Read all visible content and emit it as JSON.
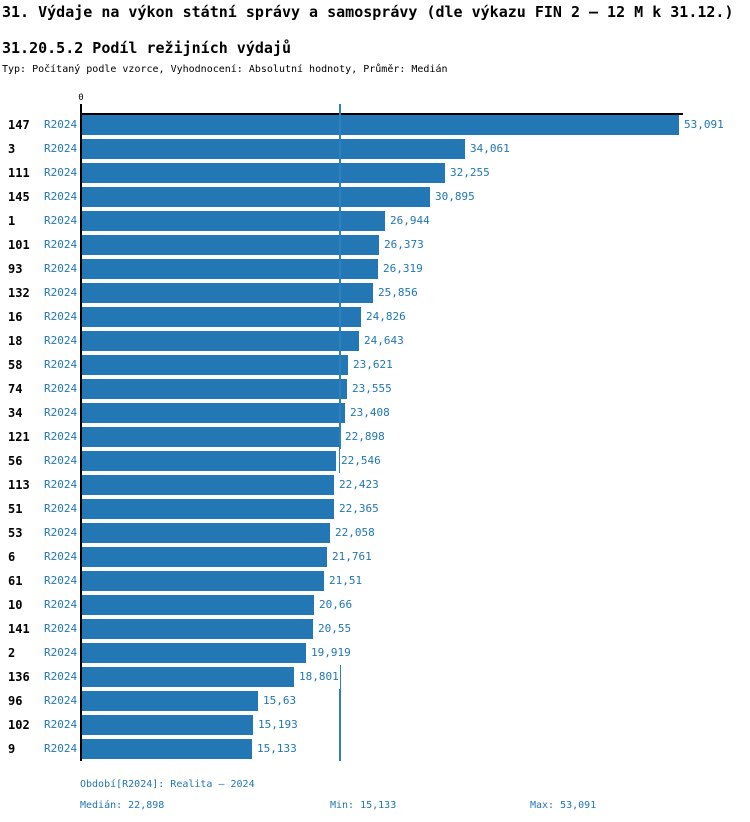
{
  "title": "31. Výdaje na výkon státní správy a samosprávy (dle výkazu FIN 2 – 12 M k 31.12.)",
  "subtitle": "31.20.5.2 Podíl režijních výdajů",
  "meta": "Typ: Počítaný podle vzorce, Vyhodnocení: Absolutní hodnoty, Průměr: Medián",
  "colors": {
    "bar": "#2277b4",
    "blue_text": "#2176b4",
    "median_line": "#2e81bb",
    "axis": "#000000"
  },
  "chart_data": {
    "type": "bar",
    "orientation": "horizontal",
    "title": "31.20.5.2 Podíl režijních výdajů",
    "xlabel": "",
    "ylabel": "",
    "grid": false,
    "legend": false,
    "series_label": "R2024",
    "x_axis": {
      "zero_label": "0"
    },
    "xlim": [
      0,
      59
    ],
    "categories": [
      "147",
      "3",
      "111",
      "145",
      "1",
      "101",
      "93",
      "132",
      "16",
      "18",
      "58",
      "74",
      "34",
      "121",
      "56",
      "113",
      "51",
      "53",
      "6",
      "61",
      "10",
      "141",
      "2",
      "136",
      "96",
      "102",
      "9"
    ],
    "values": [
      53.091,
      34.061,
      32.255,
      30.895,
      26.944,
      26.373,
      26.319,
      25.856,
      24.826,
      24.643,
      23.621,
      23.555,
      23.408,
      22.898,
      22.546,
      22.423,
      22.365,
      22.058,
      21.761,
      21.51,
      20.66,
      20.55,
      19.919,
      18.801,
      15.63,
      15.193,
      15.133
    ],
    "value_labels": [
      "53,091",
      "34,061",
      "32,255",
      "30,895",
      "26,944",
      "26,373",
      "26,319",
      "25,856",
      "24,826",
      "24,643",
      "23,621",
      "23,555",
      "23,408",
      "22,898",
      "22,546",
      "22,423",
      "22,365",
      "22,058",
      "21,761",
      "21,51",
      "20,66",
      "20,55",
      "19,919",
      "18,801",
      "15,63",
      "15,193",
      "15,133"
    ],
    "median": 22.898,
    "median_label": "22,898"
  },
  "footer": {
    "period": "Období[R2024]: Realita – 2024",
    "median": "Medián: 22,898",
    "min": "Min: 15,133",
    "max": "Max: 53,091"
  }
}
